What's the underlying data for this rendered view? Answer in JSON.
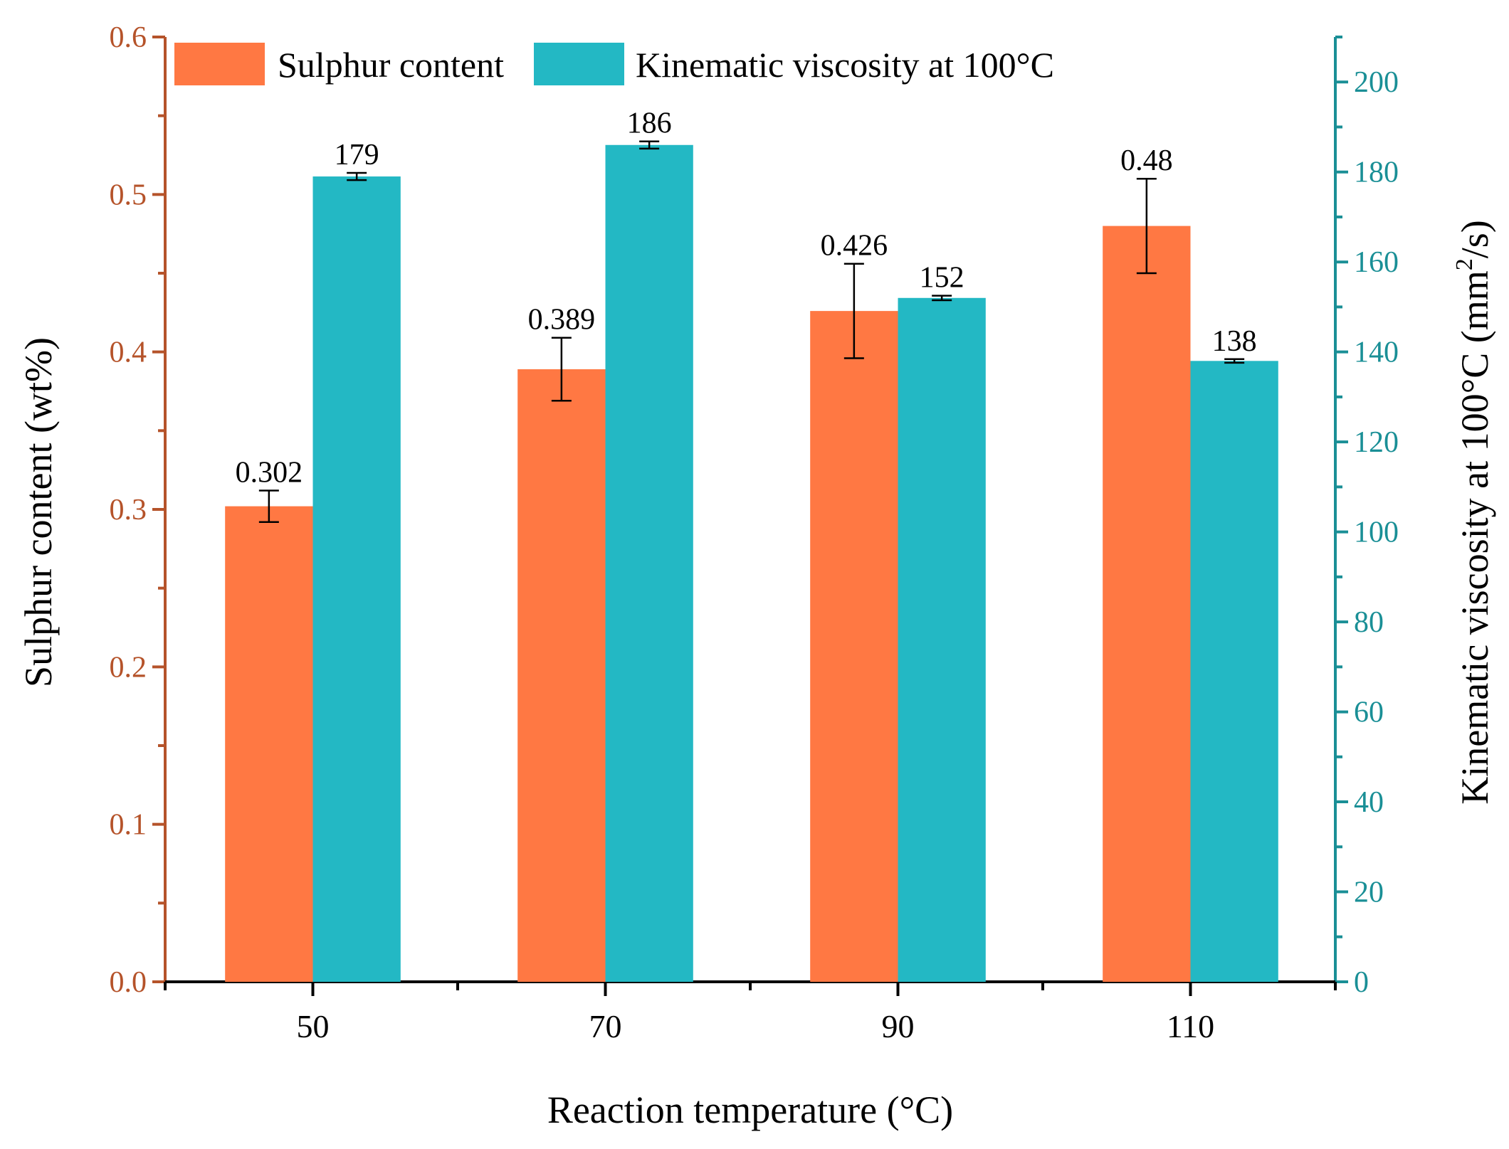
{
  "chart_data": {
    "type": "bar",
    "xlabel": "Reaction temperature (°C)",
    "ylabel_left": "Sulphur content (wt%)",
    "ylabel_right_pre": "Kinematic viscosity at 100°C (mm",
    "ylabel_right_sup": "2",
    "ylabel_right_post": "/s)",
    "categories": [
      "50",
      "70",
      "90",
      "110"
    ],
    "y_left": {
      "lim": [
        0,
        0.6
      ],
      "ticks": [
        "0.0",
        "0.1",
        "0.2",
        "0.3",
        "0.4",
        "0.5",
        "0.6"
      ],
      "color": "#b5532a"
    },
    "y_right": {
      "lim": [
        0,
        210
      ],
      "ticks": [
        "0",
        "20",
        "40",
        "60",
        "80",
        "100",
        "120",
        "140",
        "160",
        "180",
        "200"
      ],
      "color": "#1a8f96"
    },
    "series": [
      {
        "name": "Sulphur content",
        "axis": "left",
        "color": "#ff7843",
        "values": [
          0.302,
          0.389,
          0.426,
          0.48
        ],
        "errors": [
          0.01,
          0.02,
          0.03,
          0.03
        ],
        "labels": [
          "0.302",
          "0.389",
          "0.426",
          "0.48"
        ]
      },
      {
        "name": "Kinematic viscosity at 100°C",
        "axis": "right",
        "color": "#23b8c4",
        "values": [
          179,
          186,
          152,
          138
        ],
        "errors": [
          0.8,
          0.8,
          0.5,
          0.4
        ],
        "labels": [
          "179",
          "186",
          "152",
          "138"
        ]
      }
    ],
    "legend_position": "top-left",
    "grid": false
  }
}
